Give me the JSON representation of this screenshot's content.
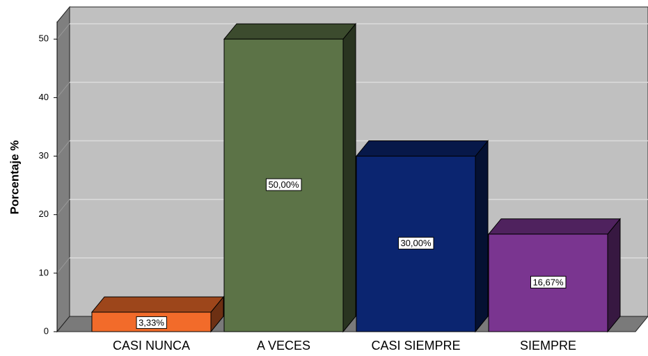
{
  "chart_data": {
    "type": "bar3d",
    "y_label": "Porcentaje %",
    "categories": [
      "CASI NUNCA",
      "A VECES",
      "CASI SIEMPRE",
      "SIEMPRE"
    ],
    "values": [
      3.33,
      50,
      30,
      16.67
    ],
    "value_labels": [
      "3,33%",
      "50,00%",
      "30,00%",
      "16,67%"
    ],
    "colors": [
      "#f26b2a",
      "#5c7347",
      "#0b2570",
      "#7a3590"
    ],
    "ylim": [
      0,
      53
    ],
    "yticks": [
      0,
      10,
      20,
      30,
      40,
      50
    ],
    "grid": true
  }
}
